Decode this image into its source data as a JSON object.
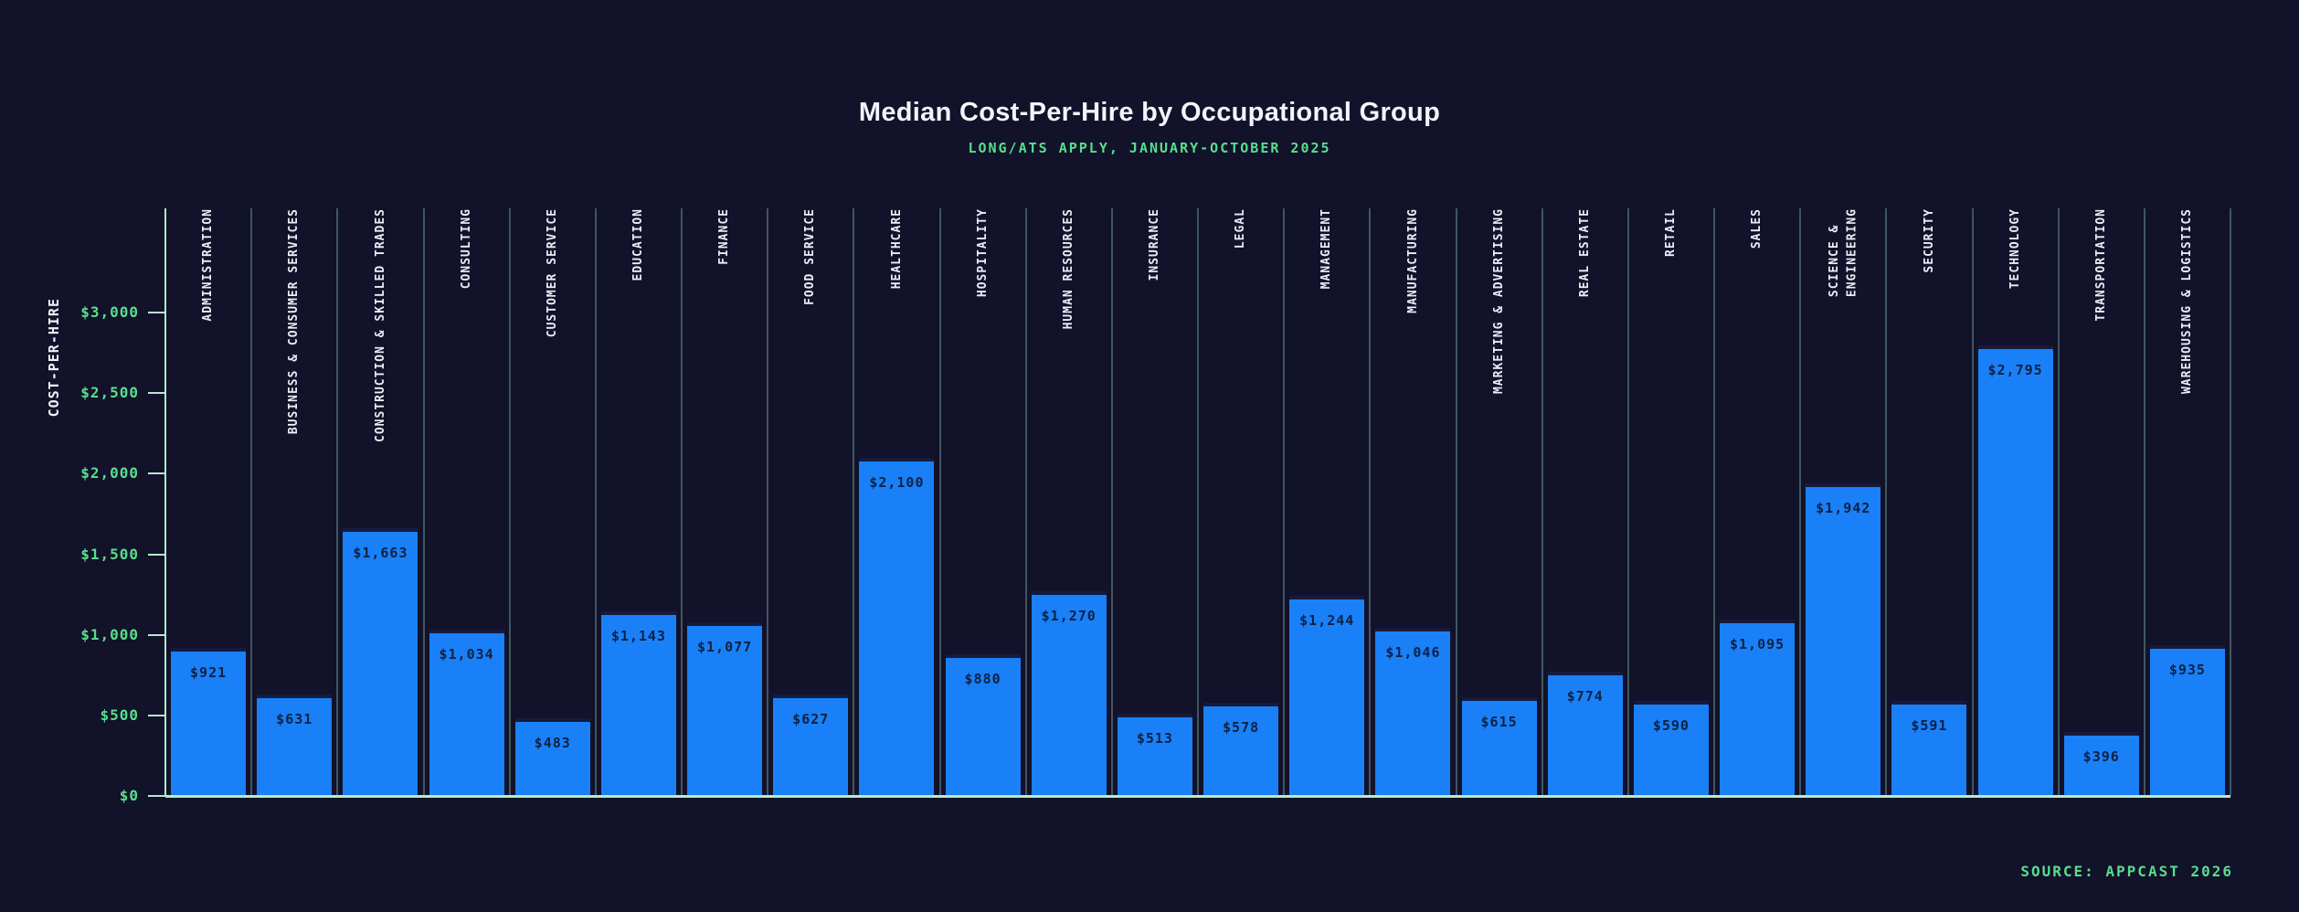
{
  "title": "Median Cost-Per-Hire by Occupational Group",
  "subtitle": "LONG/ATS APPLY, JANUARY-OCTOBER 2025",
  "source": "SOURCE: APPCAST 2026",
  "y_axis": {
    "title": "COST-PER-HIRE",
    "tick_labels": [
      "$0",
      "$500",
      "$1,000",
      "$1,500",
      "$2,000",
      "$2,500",
      "$3,000"
    ]
  },
  "chart_data": {
    "type": "bar",
    "title": "Median Cost-Per-Hire by Occupational Group",
    "subtitle": "LONG/ATS APPLY, JANUARY-OCTOBER 2025",
    "source": "SOURCE: APPCAST 2026",
    "xlabel": "",
    "ylabel": "COST-PER-HIRE",
    "ylim": [
      0,
      3650
    ],
    "yticks": [
      0,
      500,
      1000,
      1500,
      2000,
      2500,
      3000
    ],
    "ytick_labels": [
      "$0",
      "$500",
      "$1,000",
      "$1,500",
      "$2,000",
      "$2,500",
      "$3,000"
    ],
    "grid": "vertical-column-separators",
    "legend": "none",
    "categories": [
      "ADMINISTRATION",
      "BUSINESS & CONSUMER SERVICES",
      "CONSTRUCTION & SKILLED TRADES",
      "CONSULTING",
      "CUSTOMER SERVICE",
      "EDUCATION",
      "FINANCE",
      "FOOD SERVICE",
      "HEALTHCARE",
      "HOSPITALITY",
      "HUMAN RESOURCES",
      "INSURANCE",
      "LEGAL",
      "MANAGEMENT",
      "MANUFACTURING",
      "MARKETING & ADVERTISING",
      "REAL ESTATE",
      "RETAIL",
      "SALES",
      "SCIENCE &\nENGINEERING",
      "SECURITY",
      "TECHNOLOGY",
      "TRANSPORTATION",
      "WAREHOUSING & LOGISTICS"
    ],
    "values": [
      921,
      631,
      1663,
      1034,
      483,
      1143,
      1077,
      627,
      2100,
      880,
      1270,
      513,
      578,
      1244,
      1046,
      615,
      774,
      590,
      1095,
      1942,
      591,
      2795,
      396,
      935
    ],
    "value_labels": [
      "$921",
      "$631",
      "$1,663",
      "$1,034",
      "$483",
      "$1,143",
      "$1,077",
      "$627",
      "$2,100",
      "$880",
      "$1,270",
      "$513",
      "$578",
      "$1,244",
      "$1,046",
      "$615",
      "$774",
      "$590",
      "$1,095",
      "$1,942",
      "$591",
      "$2,795",
      "$396",
      "$935"
    ],
    "colors": {
      "background": "#12122a",
      "bar": "#1a80f7",
      "bar_cap": "#141b3e",
      "bar_value_text": "#0e2144",
      "axis_line": "#b5ecca",
      "gridline": "rgba(154,215,195,0.35)",
      "green_text": "#57df8c",
      "title_text": "#f2f5fa",
      "category_text": "#e9eef6"
    }
  }
}
